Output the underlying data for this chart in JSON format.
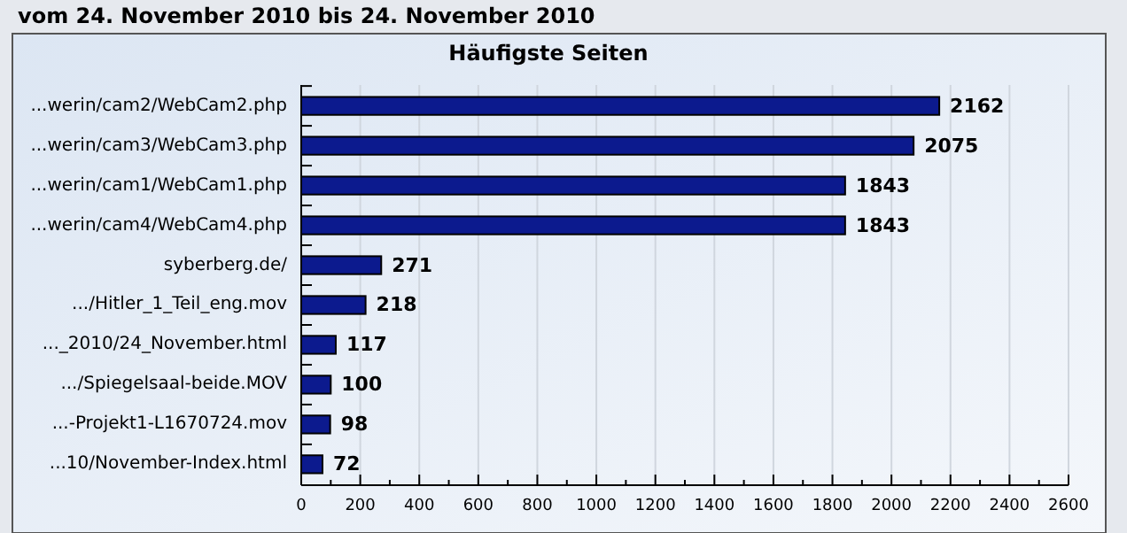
{
  "chart_data": {
    "type": "bar",
    "orientation": "horizontal",
    "title": "Häufigste Seiten",
    "subtitle": "vom 24. November 2010  bis 24. November 2010",
    "categories": [
      "...werin/cam2/WebCam2.php",
      "...werin/cam3/WebCam3.php",
      "...werin/cam1/WebCam1.php",
      "...werin/cam4/WebCam4.php",
      "syberberg.de/",
      ".../Hitler_1_Teil_eng.mov",
      "..._2010/24_November.html",
      ".../Spiegelsaal-beide.MOV",
      "...-Projekt1-L1670724.mov",
      "...10/November-Index.html"
    ],
    "values": [
      2162,
      2075,
      1843,
      1843,
      271,
      218,
      117,
      100,
      98,
      72
    ],
    "color": "#0c1a8e",
    "data_labels": true,
    "grid": "x",
    "xlim": [
      0,
      2600
    ],
    "xticks": [
      0,
      200,
      400,
      600,
      800,
      1000,
      1200,
      1400,
      1600,
      1800,
      2000,
      2200,
      2400,
      2600
    ]
  }
}
